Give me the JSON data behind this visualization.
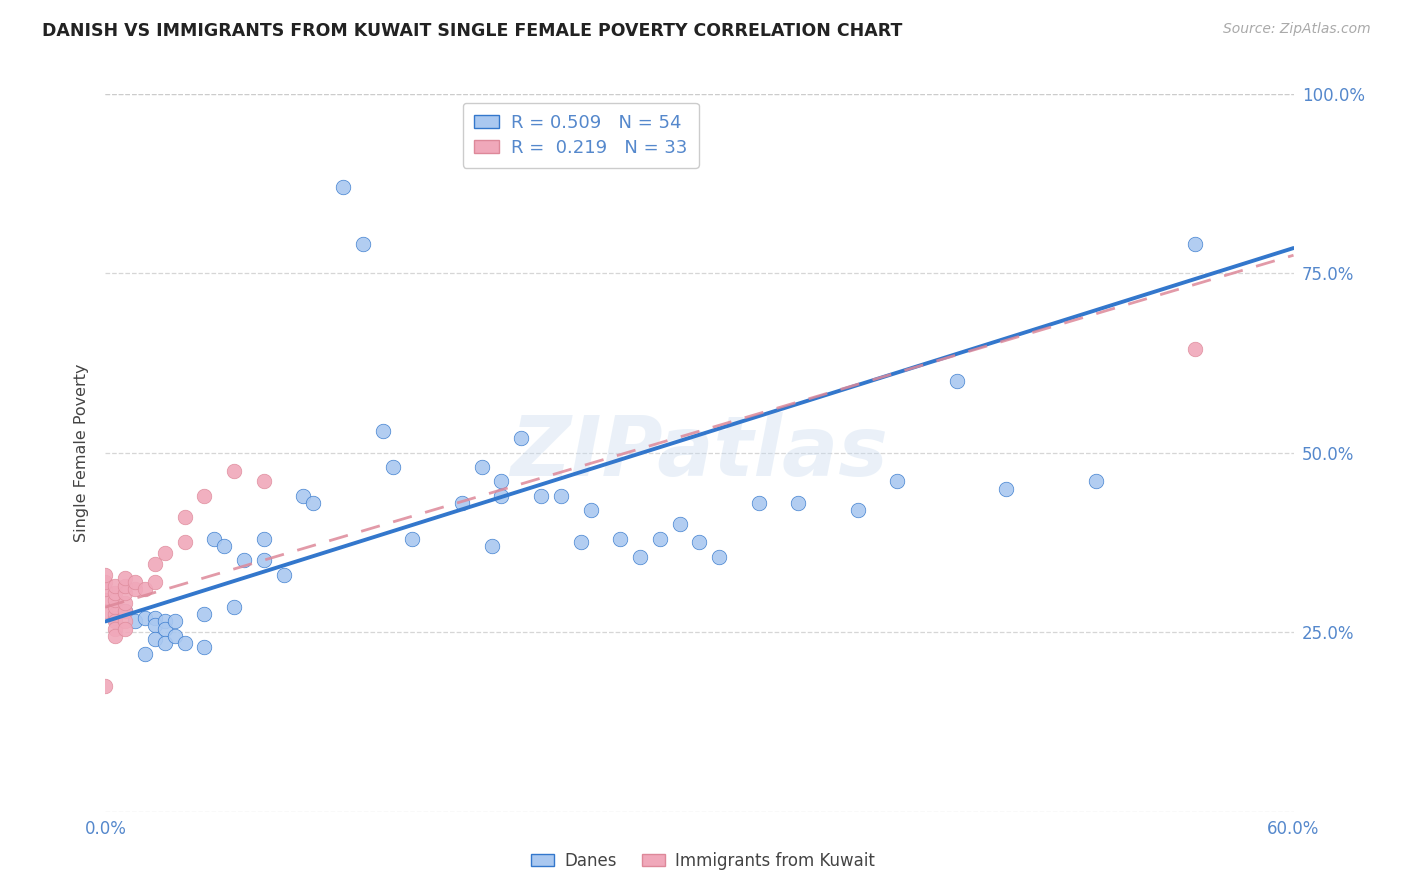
{
  "title": "DANISH VS IMMIGRANTS FROM KUWAIT SINGLE FEMALE POVERTY CORRELATION CHART",
  "source": "Source: ZipAtlas.com",
  "ylabel": "Single Female Poverty",
  "watermark": "ZIPatlas",
  "xlim": [
    0.0,
    0.6
  ],
  "ylim": [
    0.0,
    1.0
  ],
  "xticks": [
    0.0,
    0.1,
    0.2,
    0.3,
    0.4,
    0.5,
    0.6
  ],
  "xticklabels": [
    "0.0%",
    "",
    "",
    "",
    "",
    "",
    "60.0%"
  ],
  "yticks_right": [
    0.0,
    0.25,
    0.5,
    0.75,
    1.0
  ],
  "yticklabels_right": [
    "",
    "25.0%",
    "50.0%",
    "75.0%",
    "100.0%"
  ],
  "legend_blue_r": "0.509",
  "legend_blue_n": "54",
  "legend_pink_r": "0.219",
  "legend_pink_n": "33",
  "blue_scatter_color": "#aac8f0",
  "pink_scatter_color": "#f0a8ba",
  "line_blue_color": "#3377cc",
  "line_pink_color": "#dd8899",
  "tick_color": "#5588cc",
  "danes_x": [
    0.005,
    0.01,
    0.015,
    0.02,
    0.02,
    0.025,
    0.025,
    0.025,
    0.03,
    0.03,
    0.03,
    0.035,
    0.035,
    0.04,
    0.05,
    0.05,
    0.055,
    0.06,
    0.065,
    0.07,
    0.08,
    0.08,
    0.09,
    0.1,
    0.105,
    0.12,
    0.13,
    0.14,
    0.145,
    0.155,
    0.18,
    0.19,
    0.195,
    0.2,
    0.2,
    0.21,
    0.22,
    0.23,
    0.24,
    0.245,
    0.26,
    0.27,
    0.28,
    0.29,
    0.3,
    0.31,
    0.33,
    0.35,
    0.38,
    0.4,
    0.43,
    0.455,
    0.5,
    0.55
  ],
  "danes_y": [
    0.27,
    0.28,
    0.265,
    0.27,
    0.22,
    0.27,
    0.26,
    0.24,
    0.265,
    0.255,
    0.235,
    0.265,
    0.245,
    0.235,
    0.275,
    0.23,
    0.38,
    0.37,
    0.285,
    0.35,
    0.35,
    0.38,
    0.33,
    0.44,
    0.43,
    0.87,
    0.79,
    0.53,
    0.48,
    0.38,
    0.43,
    0.48,
    0.37,
    0.46,
    0.44,
    0.52,
    0.44,
    0.44,
    0.375,
    0.42,
    0.38,
    0.355,
    0.38,
    0.4,
    0.375,
    0.355,
    0.43,
    0.43,
    0.42,
    0.46,
    0.6,
    0.45,
    0.46,
    0.79
  ],
  "kuwait_x": [
    0.0,
    0.0,
    0.0,
    0.0,
    0.0,
    0.0,
    0.005,
    0.005,
    0.005,
    0.005,
    0.005,
    0.005,
    0.005,
    0.005,
    0.01,
    0.01,
    0.01,
    0.01,
    0.01,
    0.01,
    0.01,
    0.015,
    0.015,
    0.02,
    0.025,
    0.025,
    0.03,
    0.04,
    0.04,
    0.05,
    0.065,
    0.08,
    0.55
  ],
  "kuwait_y": [
    0.28,
    0.295,
    0.31,
    0.32,
    0.33,
    0.175,
    0.275,
    0.285,
    0.295,
    0.305,
    0.315,
    0.265,
    0.255,
    0.245,
    0.28,
    0.29,
    0.305,
    0.315,
    0.325,
    0.265,
    0.255,
    0.31,
    0.32,
    0.31,
    0.32,
    0.345,
    0.36,
    0.375,
    0.41,
    0.44,
    0.475,
    0.46,
    0.645
  ],
  "blue_line_x0": 0.0,
  "blue_line_y0": 0.265,
  "blue_line_x1": 0.6,
  "blue_line_y1": 0.785,
  "pink_line_x0": 0.0,
  "pink_line_y0": 0.285,
  "pink_line_x1": 0.6,
  "pink_line_y1": 0.775
}
